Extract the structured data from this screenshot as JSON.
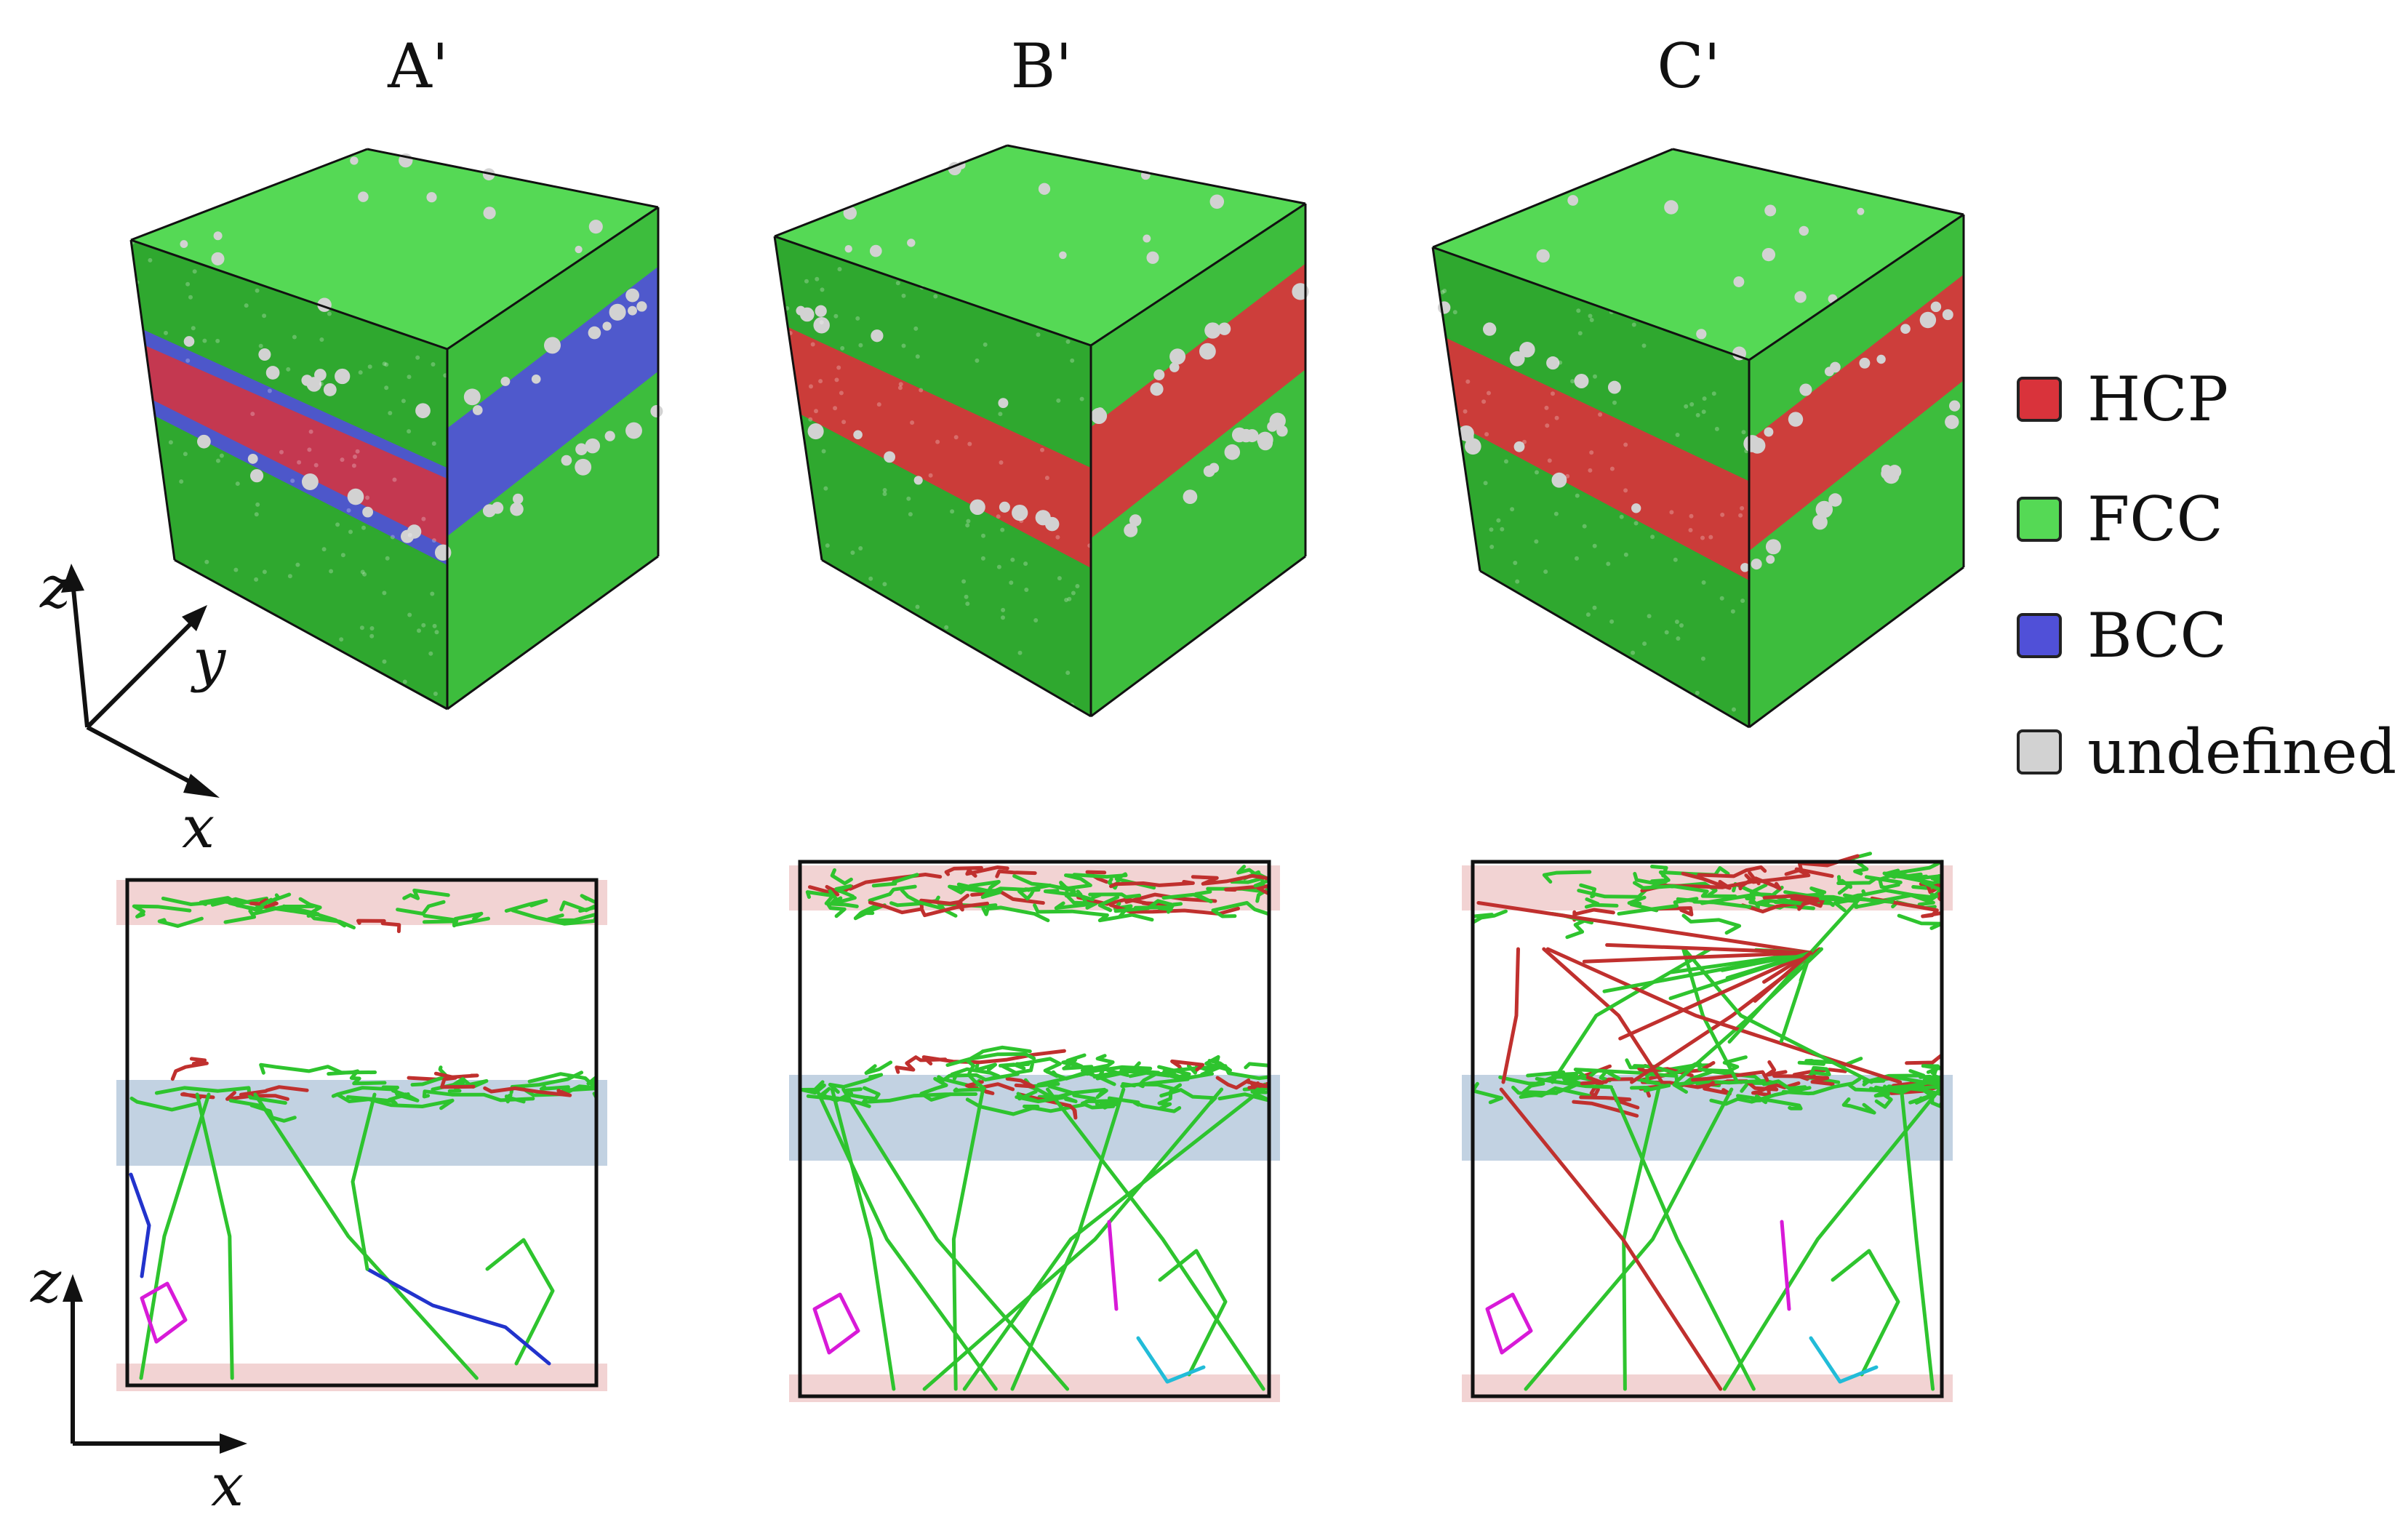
{
  "panels": [
    {
      "label": "A'",
      "bcc_band": true,
      "dislocation_density": "low"
    },
    {
      "label": "B'",
      "bcc_band": false,
      "dislocation_density": "medium"
    },
    {
      "label": "C'",
      "bcc_band": false,
      "dislocation_density": "high"
    }
  ],
  "axes_3d": {
    "z": "z",
    "y": "y",
    "x": "x"
  },
  "axes_2d": {
    "z": "z",
    "x": "x"
  },
  "legend": [
    {
      "label": "HCP",
      "color": "#d9333b"
    },
    {
      "label": "FCC",
      "color": "#55d955"
    },
    {
      "label": "BCC",
      "color": "#5050d8"
    },
    {
      "label": "undefined",
      "color": "#d2d2d2"
    }
  ],
  "colors": {
    "fcc": "#55d955",
    "fcc_dark": "#2fa82f",
    "hcp": "#d9333b",
    "bcc": "#5050d8",
    "undefined": "#d2d2d2",
    "line_green": "#2ec42e",
    "line_red": "#c0302e",
    "line_magenta": "#d81ad8",
    "line_blue": "#2233cc",
    "line_cyan": "#22bcd8",
    "band_pink": "#f2d3d3",
    "band_blue": "#c2d2e2"
  }
}
